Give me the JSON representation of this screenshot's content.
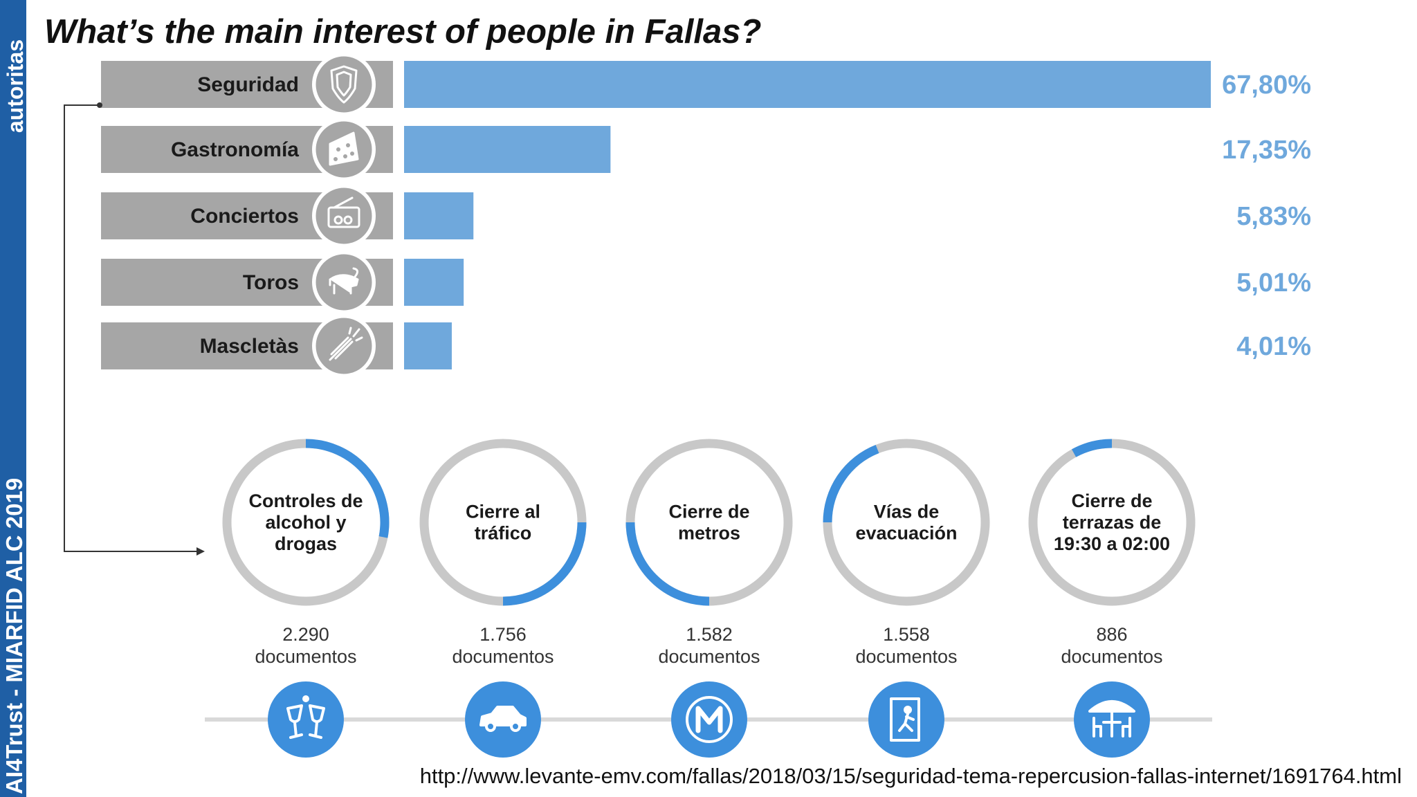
{
  "sidebar": {
    "top_text": "autoritas",
    "bottom_text": "AI4Trust - MIARFID ALC 2019"
  },
  "title": "What’s the main interest of people in Fallas?",
  "source_url": "http://www.levante-emv.com/fallas/2018/03/15/seguridad-tema-repercusion-fallas-internet/1691764.html",
  "colors": {
    "bar": "#6fa8dc",
    "label_bg": "#a6a6a6",
    "ring_gray": "#c8c8c8",
    "ring_blue": "#3d8fdc",
    "icon_circle": "#3d8fdc"
  },
  "chart_data": [
    {
      "type": "bar",
      "orientation": "horizontal",
      "categories": [
        "Seguridad",
        "Gastronomía",
        "Conciertos",
        "Toros",
        "Mascletàs"
      ],
      "values": [
        67.8,
        17.35,
        5.83,
        5.01,
        4.01
      ],
      "value_labels": [
        "67,80%",
        "17,35%",
        "5,83%",
        "5,01%",
        "4,01%"
      ],
      "icons": [
        "shield-icon",
        "cheese-icon",
        "ticket-icon",
        "bull-icon",
        "firework-icon"
      ],
      "xlim": [
        0,
        67.8
      ]
    },
    {
      "type": "donut",
      "categories": [
        "Controles de alcohol y drogas",
        "Cierre al tráfico",
        "Cierre de metros",
        "Vías de evacuación",
        "Cierre de terrazas de 19:30 a 02:00"
      ],
      "label_lines": [
        [
          "Controles de",
          "alcohol y",
          "drogas"
        ],
        [
          "Cierre al",
          "tráfico"
        ],
        [
          "Cierre de",
          "metros"
        ],
        [
          "Vías de",
          "evacuación"
        ],
        [
          "Cierre de",
          "terrazas de",
          "19:30 a 02:00"
        ]
      ],
      "values": [
        2290,
        1756,
        1582,
        1558,
        886
      ],
      "count_labels": [
        "2.290",
        "1.756",
        "1.582",
        "1.558",
        "886"
      ],
      "unit": "documentos",
      "arc_ranges": [
        [
          0,
          0.28
        ],
        [
          0.25,
          0.5
        ],
        [
          0.5,
          0.75
        ],
        [
          0.75,
          0.94
        ],
        [
          0.92,
          1.0
        ]
      ],
      "icons": [
        "cocktail-glasses-icon",
        "car-icon",
        "metro-icon",
        "emergency-exit-icon",
        "terrace-umbrella-icon"
      ]
    }
  ]
}
